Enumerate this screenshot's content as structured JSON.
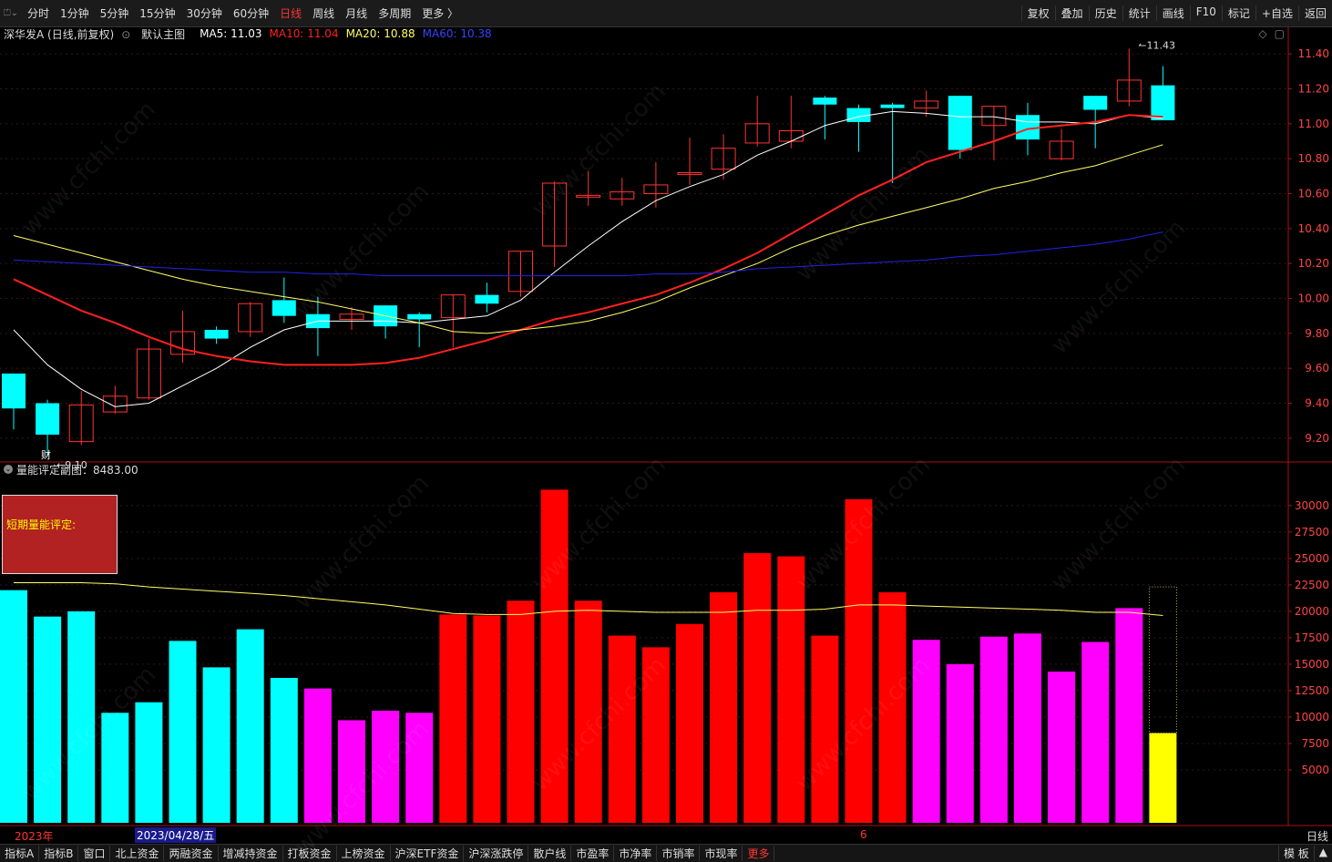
{
  "topbar": {
    "periods": [
      "分时",
      "1分钟",
      "5分钟",
      "15分钟",
      "30分钟",
      "60分钟",
      "日线",
      "周线",
      "月线",
      "多周期",
      "更多 〉"
    ],
    "active_period": "日线",
    "right_items": [
      "复权",
      "叠加",
      "历史",
      "统计",
      "画线",
      "F10",
      "标记",
      "+自选",
      "返回"
    ]
  },
  "info": {
    "stock": "深华发A (日线,前复权)",
    "template": "默认主图",
    "ma5": "MA5: 11.03",
    "ma10": "MA10: 11.04",
    "ma20": "MA20: 10.88",
    "ma60": "MA60: 10.38"
  },
  "colors": {
    "up": "#ff3333",
    "down": "#00ffff",
    "ma5": "#ffffff",
    "ma10": "#ff2020",
    "ma20": "#ffff66",
    "ma60": "#2222ee",
    "vol_cyan": "#00ffff",
    "vol_magenta": "#ff00ff",
    "vol_red": "#ff0000",
    "vol_yellow": "#ffff00"
  },
  "sub": {
    "title": "量能评定副图：8483.00",
    "box_label": "短期量能评定:"
  },
  "dates": {
    "start_year": "2023年",
    "cursor_date": "2023/04/28/五",
    "month": "6"
  },
  "period_label": "日线",
  "cai_label": "财",
  "bottombar": {
    "items": [
      "指标A",
      "指标B",
      "窗口",
      "北上资金",
      "两融资金",
      "增减持资金",
      "打板资金",
      "上榜资金",
      "沪深ETF资金",
      "沪深涨跌停",
      "散户线",
      "市盈率",
      "市净率",
      "市销率",
      "市现率",
      "更多"
    ],
    "right_items": [
      "模 板",
      "▲"
    ]
  },
  "watermark": "www.cfchi.com",
  "chart_data": [
    {
      "type": "candlestick",
      "ylim": [
        9.1,
        11.5
      ],
      "yticks": [
        9.2,
        9.4,
        9.6,
        9.8,
        10.0,
        10.2,
        10.4,
        10.6,
        10.8,
        11.0,
        11.2,
        11.4
      ],
      "candles": [
        {
          "o": 9.57,
          "c": 9.37,
          "h": 9.57,
          "l": 9.25
        },
        {
          "o": 9.4,
          "c": 9.22,
          "h": 9.42,
          "l": 9.1
        },
        {
          "o": 9.18,
          "c": 9.39,
          "h": 9.47,
          "l": 9.16
        },
        {
          "o": 9.35,
          "c": 9.44,
          "h": 9.5,
          "l": 9.34
        },
        {
          "o": 9.43,
          "c": 9.71,
          "h": 9.77,
          "l": 9.42
        },
        {
          "o": 9.68,
          "c": 9.81,
          "h": 9.93,
          "l": 9.63
        },
        {
          "o": 9.82,
          "c": 9.77,
          "h": 9.84,
          "l": 9.74
        },
        {
          "o": 9.81,
          "c": 9.97,
          "h": 9.98,
          "l": 9.78
        },
        {
          "o": 9.99,
          "c": 9.9,
          "h": 10.12,
          "l": 9.86
        },
        {
          "o": 9.91,
          "c": 9.83,
          "h": 10.01,
          "l": 9.67
        },
        {
          "o": 9.88,
          "c": 9.91,
          "h": 9.95,
          "l": 9.82
        },
        {
          "o": 9.96,
          "c": 9.84,
          "h": 9.96,
          "l": 9.77
        },
        {
          "o": 9.91,
          "c": 9.88,
          "h": 9.92,
          "l": 9.72
        },
        {
          "o": 9.89,
          "c": 10.02,
          "h": 10.02,
          "l": 9.72
        },
        {
          "o": 10.02,
          "c": 9.97,
          "h": 10.09,
          "l": 9.92
        },
        {
          "o": 10.04,
          "c": 10.27,
          "h": 10.27,
          "l": 10.01
        },
        {
          "o": 10.3,
          "c": 10.66,
          "h": 10.67,
          "l": 10.18
        },
        {
          "o": 10.58,
          "c": 10.59,
          "h": 10.73,
          "l": 10.53
        },
        {
          "o": 10.57,
          "c": 10.61,
          "h": 10.69,
          "l": 10.53
        },
        {
          "o": 10.6,
          "c": 10.65,
          "h": 10.78,
          "l": 10.52
        },
        {
          "o": 10.71,
          "c": 10.72,
          "h": 10.92,
          "l": 10.65
        },
        {
          "o": 10.74,
          "c": 10.86,
          "h": 10.94,
          "l": 10.68
        },
        {
          "o": 10.89,
          "c": 11.0,
          "h": 11.16,
          "l": 10.87
        },
        {
          "o": 10.9,
          "c": 10.96,
          "h": 11.16,
          "l": 10.86
        },
        {
          "o": 11.15,
          "c": 11.11,
          "h": 11.16,
          "l": 10.91
        },
        {
          "o": 11.09,
          "c": 11.01,
          "h": 11.11,
          "l": 10.84
        },
        {
          "o": 11.11,
          "c": 11.09,
          "h": 11.12,
          "l": 10.66
        },
        {
          "o": 11.09,
          "c": 11.13,
          "h": 11.19,
          "l": 11.04
        },
        {
          "o": 11.16,
          "c": 10.85,
          "h": 11.16,
          "l": 10.8
        },
        {
          "o": 10.99,
          "c": 11.1,
          "h": 11.1,
          "l": 10.79
        },
        {
          "o": 11.05,
          "c": 10.91,
          "h": 11.12,
          "l": 10.82
        },
        {
          "o": 10.8,
          "c": 10.9,
          "h": 10.97,
          "l": 10.79
        },
        {
          "o": 11.16,
          "c": 11.08,
          "h": 11.16,
          "l": 10.86
        },
        {
          "o": 11.13,
          "c": 11.25,
          "h": 11.43,
          "l": 11.1
        },
        {
          "o": 11.22,
          "c": 11.02,
          "h": 11.33,
          "l": 11.02
        }
      ],
      "series": [
        {
          "key": "ma5",
          "values": [
            9.82,
            9.62,
            9.48,
            9.38,
            9.4,
            9.5,
            9.6,
            9.72,
            9.82,
            9.87,
            9.87,
            9.87,
            9.86,
            9.88,
            9.9,
            9.99,
            10.15,
            10.3,
            10.44,
            10.56,
            10.64,
            10.71,
            10.82,
            10.9,
            10.99,
            11.04,
            11.07,
            11.06,
            11.04,
            11.04,
            11.01,
            11.01,
            11.0,
            11.05,
            11.03
          ]
        },
        {
          "key": "ma10",
          "values": [
            10.11,
            10.02,
            9.93,
            9.86,
            9.78,
            9.71,
            9.67,
            9.64,
            9.62,
            9.62,
            9.62,
            9.63,
            9.66,
            9.71,
            9.76,
            9.82,
            9.88,
            9.92,
            9.97,
            10.02,
            10.09,
            10.17,
            10.26,
            10.37,
            10.48,
            10.59,
            10.68,
            10.78,
            10.84,
            10.9,
            10.97,
            10.99,
            11.01,
            11.05,
            11.04
          ]
        },
        {
          "key": "ma20",
          "values": [
            10.36,
            10.31,
            10.26,
            10.21,
            10.16,
            10.11,
            10.07,
            10.04,
            10.01,
            9.98,
            9.94,
            9.9,
            9.86,
            9.81,
            9.8,
            9.82,
            9.84,
            9.87,
            9.92,
            9.98,
            10.06,
            10.13,
            10.2,
            10.29,
            10.36,
            10.42,
            10.47,
            10.52,
            10.57,
            10.63,
            10.67,
            10.72,
            10.76,
            10.82,
            10.88
          ]
        },
        {
          "key": "ma60",
          "values": [
            10.22,
            10.21,
            10.2,
            10.19,
            10.18,
            10.17,
            10.16,
            10.15,
            10.15,
            10.14,
            10.14,
            10.13,
            10.13,
            10.13,
            10.13,
            10.13,
            10.13,
            10.13,
            10.13,
            10.14,
            10.14,
            10.15,
            10.17,
            10.18,
            10.19,
            10.2,
            10.21,
            10.22,
            10.24,
            10.25,
            10.27,
            10.29,
            10.31,
            10.34,
            10.38
          ]
        }
      ],
      "annotations": [
        {
          "label": "9.10",
          "index": 1
        },
        {
          "label": "11.43",
          "index": 33
        }
      ]
    },
    {
      "type": "bar",
      "ylim": [
        0,
        33000
      ],
      "yticks": [
        5000,
        7500,
        10000,
        12500,
        15000,
        17500,
        20000,
        22500,
        25000,
        27500,
        30000
      ],
      "values": [
        22000,
        19500,
        20000,
        10400,
        11400,
        17200,
        14700,
        18300,
        13700,
        12700,
        9700,
        10600,
        10400,
        19700,
        19600,
        21000,
        31500,
        21000,
        17700,
        16600,
        18800,
        21800,
        25500,
        25200,
        17700,
        30600,
        21800,
        17300,
        15000,
        17600,
        17900,
        14300,
        17100,
        20300,
        8483
      ],
      "colors": [
        "cyan",
        "cyan",
        "cyan",
        "cyan",
        "cyan",
        "cyan",
        "cyan",
        "cyan",
        "cyan",
        "magenta",
        "magenta",
        "magenta",
        "magenta",
        "red",
        "red",
        "red",
        "red",
        "red",
        "red",
        "red",
        "red",
        "red",
        "red",
        "red",
        "red",
        "red",
        "red",
        "magenta",
        "magenta",
        "magenta",
        "magenta",
        "magenta",
        "magenta",
        "magenta",
        "yellow"
      ],
      "avg_line": [
        22700,
        22700,
        22700,
        22600,
        22300,
        22100,
        21900,
        21700,
        21500,
        21200,
        20900,
        20600,
        20200,
        19800,
        19700,
        19700,
        20000,
        20100,
        20000,
        19900,
        19900,
        19900,
        20100,
        20100,
        20200,
        20600,
        20600,
        20500,
        20400,
        20300,
        20200,
        20100,
        19900,
        19900,
        19600
      ],
      "ghost_bar_top": 22300
    }
  ]
}
